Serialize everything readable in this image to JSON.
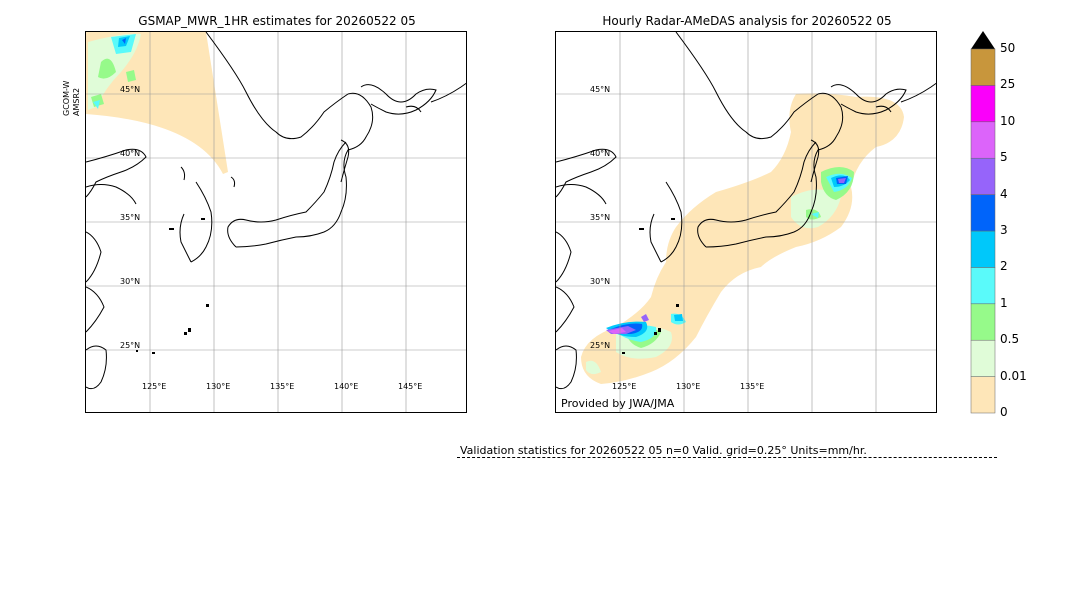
{
  "left_panel": {
    "title": "GSMAP_MWR_1HR estimates for 20260522 05",
    "satellite": [
      "GCOM-W",
      "AMSR2"
    ],
    "lat_labels": [
      "45°N",
      "40°N",
      "35°N",
      "30°N",
      "25°N"
    ],
    "lon_labels": [
      "125°E",
      "130°E",
      "135°E",
      "140°E",
      "145°E"
    ]
  },
  "right_panel": {
    "title": "Hourly Radar-AMeDAS analysis for 20260522 05",
    "credit": "Provided by JWA/JMA",
    "lat_labels": [
      "45°N",
      "40°N",
      "35°N",
      "30°N",
      "25°N"
    ],
    "lon_labels": [
      "125°E",
      "130°E",
      "135°E"
    ]
  },
  "colorbar": {
    "labels": [
      "0",
      "0.01",
      "0.5",
      "1",
      "2",
      "3",
      "4",
      "5",
      "10",
      "25",
      "50"
    ],
    "colors": [
      "#fee6b8",
      "#e0fcd8",
      "#96fa8a",
      "#5afafa",
      "#00c8fa",
      "#0064fa",
      "#9664fa",
      "#dc64fa",
      "#fa00fa",
      "#c8963c"
    ],
    "extend_color": "#000000"
  },
  "validation": {
    "text": "Validation statistics for 20260522 05  n=0 Valid. grid=0.25° Units=mm/hr."
  }
}
